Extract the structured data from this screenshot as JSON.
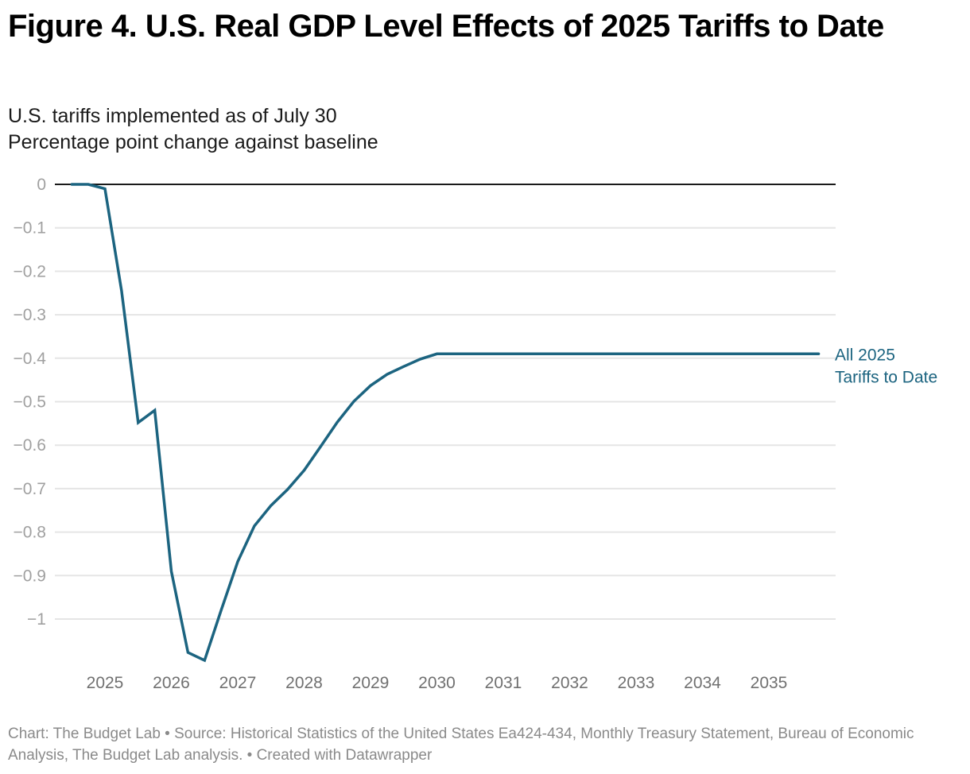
{
  "header": {
    "title": "Figure 4. U.S. Real GDP Level Effects of 2025 Tariffs to Date",
    "subtitle_lines": [
      "U.S. tariffs implemented as of July 30",
      "Percentage point change against baseline"
    ]
  },
  "footer": {
    "text": "Chart: The Budget Lab • Source: Historical Statistics of the United States Ea424-434, Monthly Treasury Statement, Bureau of Economic Analysis, The Budget Lab analysis.  • Created with Datawrapper"
  },
  "colors": {
    "series": "#1c6480",
    "zero_line": "#1a1a1a",
    "grid": "#e5e5e5"
  },
  "chart_data": {
    "type": "line",
    "title": "Figure 4. U.S. Real GDP Level Effects of 2025 Tariffs to Date",
    "subtitle": "U.S. tariffs implemented as of July 30 / Percentage point change against baseline",
    "xlabel": "",
    "ylabel": "Percentage point change against baseline",
    "xlim": [
      2024.5,
      2036.0
    ],
    "ylim": [
      -1.1,
      0
    ],
    "grid": true,
    "legend": "direct-label-right",
    "y_ticks": [
      0,
      -0.1,
      -0.2,
      -0.3,
      -0.4,
      -0.5,
      -0.6,
      -0.7,
      -0.8,
      -0.9,
      -1
    ],
    "y_tick_labels": [
      "0",
      "−0.1",
      "−0.2",
      "−0.3",
      "−0.4",
      "−0.5",
      "−0.6",
      "−0.7",
      "−0.8",
      "−0.9",
      "−1"
    ],
    "x_ticks": [
      2025,
      2026,
      2027,
      2028,
      2029,
      2030,
      2031,
      2032,
      2033,
      2034,
      2035
    ],
    "x_tick_labels": [
      "2025",
      "2026",
      "2027",
      "2028",
      "2029",
      "2030",
      "2031",
      "2032",
      "2033",
      "2034",
      "2035"
    ],
    "series": [
      {
        "name": "All 2025 Tariffs to Date",
        "label_lines": [
          "All 2025",
          "Tariffs to Date"
        ],
        "x": [
          2024.5,
          2024.75,
          2025.0,
          2025.25,
          2025.5,
          2025.75,
          2026.0,
          2026.25,
          2026.5,
          2026.75,
          2027.0,
          2027.25,
          2027.5,
          2027.75,
          2028.0,
          2028.25,
          2028.5,
          2028.75,
          2029.0,
          2029.25,
          2029.5,
          2029.75,
          2030.0,
          2030.25,
          2030.5,
          2030.75,
          2031.0,
          2031.25,
          2031.5,
          2031.75,
          2032.0,
          2032.25,
          2032.5,
          2032.75,
          2033.0,
          2033.25,
          2033.5,
          2033.75,
          2034.0,
          2034.25,
          2034.5,
          2034.75,
          2035.0,
          2035.25,
          2035.5,
          2035.75
        ],
        "values": [
          0,
          0,
          -0.01,
          -0.245,
          -0.548,
          -0.52,
          -0.89,
          -1.077,
          -1.095,
          -0.98,
          -0.868,
          -0.786,
          -0.739,
          -0.702,
          -0.658,
          -0.603,
          -0.547,
          -0.499,
          -0.463,
          -0.437,
          -0.419,
          -0.402,
          -0.39,
          -0.39,
          -0.39,
          -0.39,
          -0.39,
          -0.39,
          -0.39,
          -0.39,
          -0.39,
          -0.39,
          -0.39,
          -0.39,
          -0.39,
          -0.39,
          -0.39,
          -0.39,
          -0.39,
          -0.39,
          -0.39,
          -0.39,
          -0.39,
          -0.39,
          -0.39,
          -0.39
        ]
      }
    ]
  }
}
